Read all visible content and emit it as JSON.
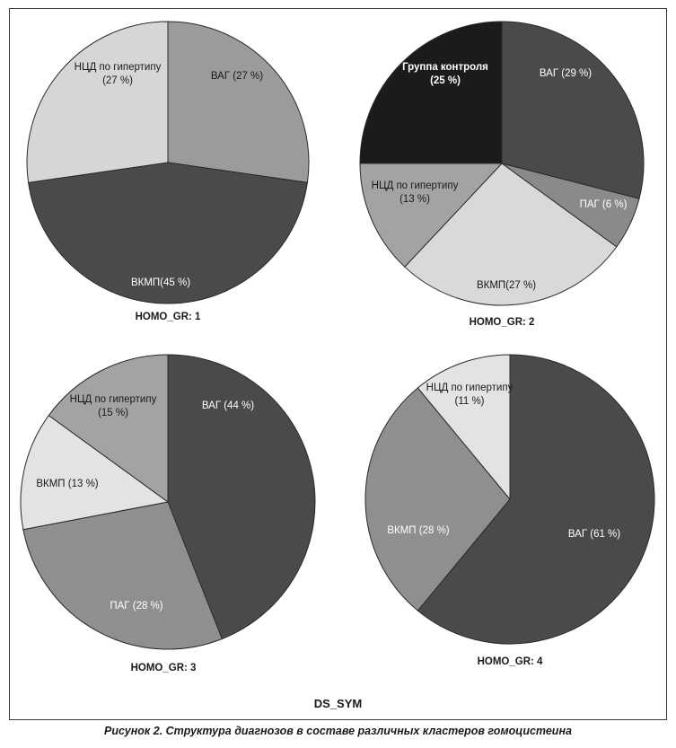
{
  "chart_data": [
    {
      "type": "pie",
      "title": "HOMO_GR: 1",
      "slices": [
        {
          "label": [
            "ВАГ (27 %)"
          ],
          "value": 27,
          "color": "#9b9b9b"
        },
        {
          "label": [
            "ВКМП(45 %)"
          ],
          "value": 45,
          "color": "#4a4a4a",
          "light": true
        },
        {
          "label": [
            "НЦД по гипертипу",
            "(27 %)"
          ],
          "value": 27,
          "color": "#d6d6d6"
        }
      ]
    },
    {
      "type": "pie",
      "title": "HOMO_GR: 2",
      "slices": [
        {
          "label": [
            "ВАГ (29 %)"
          ],
          "value": 29,
          "color": "#4a4a4a",
          "light": true
        },
        {
          "label": [
            "ПАГ (6 %)"
          ],
          "value": 6,
          "color": "#8a8a8a",
          "light": true
        },
        {
          "label": [
            "ВКМП(27 %)"
          ],
          "value": 27,
          "color": "#d9d9d9"
        },
        {
          "label": [
            "НЦД по гипертипу",
            "(13 %)"
          ],
          "value": 13,
          "color": "#a3a3a3"
        },
        {
          "label": [
            "Группа контроля",
            "(25 %)"
          ],
          "value": 25,
          "color": "#1c1a1b",
          "light": true,
          "bold": true
        }
      ]
    },
    {
      "type": "pie",
      "title": "HOMO_GR: 3",
      "slices": [
        {
          "label": [
            "ВАГ (44 %)"
          ],
          "value": 44,
          "color": "#4a4a4a",
          "light": true
        },
        {
          "label": [
            "ПАГ (28 %)"
          ],
          "value": 28,
          "color": "#8f8f8f",
          "light": true
        },
        {
          "label": [
            "ВКМП (13 %)"
          ],
          "value": 13,
          "color": "#e3e3e3"
        },
        {
          "label": [
            "НЦД по гипертипу",
            "(15 %)"
          ],
          "value": 15,
          "color": "#a3a3a3"
        }
      ]
    },
    {
      "type": "pie",
      "title": "HOMO_GR: 4",
      "slices": [
        {
          "label": [
            "ВАГ (61 %)"
          ],
          "value": 61,
          "color": "#4a4a4a",
          "light": true
        },
        {
          "label": [
            "ВКМП (28 %)"
          ],
          "value": 28,
          "color": "#8f8f8f",
          "light": true
        },
        {
          "label": [
            "НЦД по гипертипу",
            "(11 %)"
          ],
          "value": 11,
          "color": "#e3e3e3"
        }
      ]
    }
  ],
  "footer_title": "DS_SYM",
  "caption": "Рисунок 2. Структура диагнозов в составе различных кластеров гомоцистеина"
}
